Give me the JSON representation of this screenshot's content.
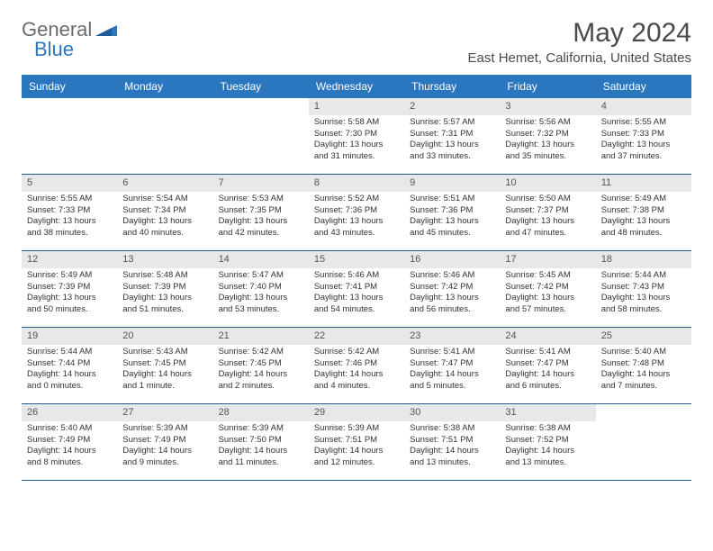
{
  "logo": {
    "text1": "General",
    "text2": "Blue"
  },
  "title": "May 2024",
  "location": "East Hemet, California, United States",
  "colors": {
    "header_bg": "#2a77c0",
    "header_text": "#ffffff",
    "daynum_bg": "#e8e8e8",
    "border": "#2a5a8a",
    "logo_gray": "#6b6b6b",
    "logo_blue": "#2a77c0"
  },
  "weekdays": [
    "Sunday",
    "Monday",
    "Tuesday",
    "Wednesday",
    "Thursday",
    "Friday",
    "Saturday"
  ],
  "weeks": [
    [
      null,
      null,
      null,
      {
        "n": "1",
        "sr": "Sunrise: 5:58 AM",
        "ss": "Sunset: 7:30 PM",
        "dl": "Daylight: 13 hours and 31 minutes."
      },
      {
        "n": "2",
        "sr": "Sunrise: 5:57 AM",
        "ss": "Sunset: 7:31 PM",
        "dl": "Daylight: 13 hours and 33 minutes."
      },
      {
        "n": "3",
        "sr": "Sunrise: 5:56 AM",
        "ss": "Sunset: 7:32 PM",
        "dl": "Daylight: 13 hours and 35 minutes."
      },
      {
        "n": "4",
        "sr": "Sunrise: 5:55 AM",
        "ss": "Sunset: 7:33 PM",
        "dl": "Daylight: 13 hours and 37 minutes."
      }
    ],
    [
      {
        "n": "5",
        "sr": "Sunrise: 5:55 AM",
        "ss": "Sunset: 7:33 PM",
        "dl": "Daylight: 13 hours and 38 minutes."
      },
      {
        "n": "6",
        "sr": "Sunrise: 5:54 AM",
        "ss": "Sunset: 7:34 PM",
        "dl": "Daylight: 13 hours and 40 minutes."
      },
      {
        "n": "7",
        "sr": "Sunrise: 5:53 AM",
        "ss": "Sunset: 7:35 PM",
        "dl": "Daylight: 13 hours and 42 minutes."
      },
      {
        "n": "8",
        "sr": "Sunrise: 5:52 AM",
        "ss": "Sunset: 7:36 PM",
        "dl": "Daylight: 13 hours and 43 minutes."
      },
      {
        "n": "9",
        "sr": "Sunrise: 5:51 AM",
        "ss": "Sunset: 7:36 PM",
        "dl": "Daylight: 13 hours and 45 minutes."
      },
      {
        "n": "10",
        "sr": "Sunrise: 5:50 AM",
        "ss": "Sunset: 7:37 PM",
        "dl": "Daylight: 13 hours and 47 minutes."
      },
      {
        "n": "11",
        "sr": "Sunrise: 5:49 AM",
        "ss": "Sunset: 7:38 PM",
        "dl": "Daylight: 13 hours and 48 minutes."
      }
    ],
    [
      {
        "n": "12",
        "sr": "Sunrise: 5:49 AM",
        "ss": "Sunset: 7:39 PM",
        "dl": "Daylight: 13 hours and 50 minutes."
      },
      {
        "n": "13",
        "sr": "Sunrise: 5:48 AM",
        "ss": "Sunset: 7:39 PM",
        "dl": "Daylight: 13 hours and 51 minutes."
      },
      {
        "n": "14",
        "sr": "Sunrise: 5:47 AM",
        "ss": "Sunset: 7:40 PM",
        "dl": "Daylight: 13 hours and 53 minutes."
      },
      {
        "n": "15",
        "sr": "Sunrise: 5:46 AM",
        "ss": "Sunset: 7:41 PM",
        "dl": "Daylight: 13 hours and 54 minutes."
      },
      {
        "n": "16",
        "sr": "Sunrise: 5:46 AM",
        "ss": "Sunset: 7:42 PM",
        "dl": "Daylight: 13 hours and 56 minutes."
      },
      {
        "n": "17",
        "sr": "Sunrise: 5:45 AM",
        "ss": "Sunset: 7:42 PM",
        "dl": "Daylight: 13 hours and 57 minutes."
      },
      {
        "n": "18",
        "sr": "Sunrise: 5:44 AM",
        "ss": "Sunset: 7:43 PM",
        "dl": "Daylight: 13 hours and 58 minutes."
      }
    ],
    [
      {
        "n": "19",
        "sr": "Sunrise: 5:44 AM",
        "ss": "Sunset: 7:44 PM",
        "dl": "Daylight: 14 hours and 0 minutes."
      },
      {
        "n": "20",
        "sr": "Sunrise: 5:43 AM",
        "ss": "Sunset: 7:45 PM",
        "dl": "Daylight: 14 hours and 1 minute."
      },
      {
        "n": "21",
        "sr": "Sunrise: 5:42 AM",
        "ss": "Sunset: 7:45 PM",
        "dl": "Daylight: 14 hours and 2 minutes."
      },
      {
        "n": "22",
        "sr": "Sunrise: 5:42 AM",
        "ss": "Sunset: 7:46 PM",
        "dl": "Daylight: 14 hours and 4 minutes."
      },
      {
        "n": "23",
        "sr": "Sunrise: 5:41 AM",
        "ss": "Sunset: 7:47 PM",
        "dl": "Daylight: 14 hours and 5 minutes."
      },
      {
        "n": "24",
        "sr": "Sunrise: 5:41 AM",
        "ss": "Sunset: 7:47 PM",
        "dl": "Daylight: 14 hours and 6 minutes."
      },
      {
        "n": "25",
        "sr": "Sunrise: 5:40 AM",
        "ss": "Sunset: 7:48 PM",
        "dl": "Daylight: 14 hours and 7 minutes."
      }
    ],
    [
      {
        "n": "26",
        "sr": "Sunrise: 5:40 AM",
        "ss": "Sunset: 7:49 PM",
        "dl": "Daylight: 14 hours and 8 minutes."
      },
      {
        "n": "27",
        "sr": "Sunrise: 5:39 AM",
        "ss": "Sunset: 7:49 PM",
        "dl": "Daylight: 14 hours and 9 minutes."
      },
      {
        "n": "28",
        "sr": "Sunrise: 5:39 AM",
        "ss": "Sunset: 7:50 PM",
        "dl": "Daylight: 14 hours and 11 minutes."
      },
      {
        "n": "29",
        "sr": "Sunrise: 5:39 AM",
        "ss": "Sunset: 7:51 PM",
        "dl": "Daylight: 14 hours and 12 minutes."
      },
      {
        "n": "30",
        "sr": "Sunrise: 5:38 AM",
        "ss": "Sunset: 7:51 PM",
        "dl": "Daylight: 14 hours and 13 minutes."
      },
      {
        "n": "31",
        "sr": "Sunrise: 5:38 AM",
        "ss": "Sunset: 7:52 PM",
        "dl": "Daylight: 14 hours and 13 minutes."
      },
      null
    ]
  ]
}
